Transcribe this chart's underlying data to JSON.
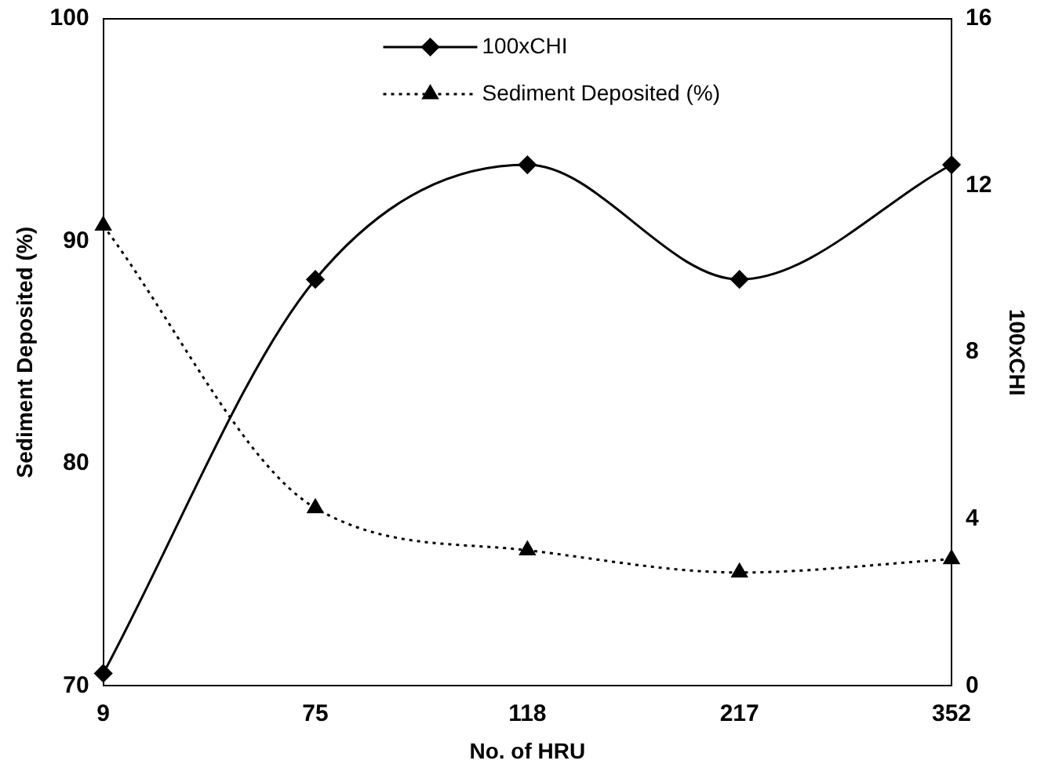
{
  "chart_data": {
    "type": "line",
    "categories": [
      "9",
      "75",
      "118",
      "217",
      "352"
    ],
    "xlabel": "No. of HRU",
    "ylabel": "Sediment Deposited (%)",
    "y2label": "100xCHI",
    "ylim": [
      70,
      100
    ],
    "yticks": [
      70,
      80,
      90,
      100
    ],
    "y2lim": [
      0,
      16
    ],
    "y2ticks": [
      0,
      4,
      8,
      12,
      16
    ],
    "legend": "top",
    "series": [
      {
        "name": "100xCHI",
        "color": "#000000",
        "axis": "y2",
        "marker": "diamond",
        "line_style": "solid",
        "values": [
          0.3,
          9.75,
          12.5,
          9.75,
          12.5
        ]
      },
      {
        "name": "Sediment Deposited (%)",
        "color": "#000000",
        "axis": "y",
        "marker": "triangle",
        "line_style": "dotted",
        "values": [
          90.7,
          78,
          76.1,
          75.1,
          75.7
        ]
      }
    ]
  }
}
